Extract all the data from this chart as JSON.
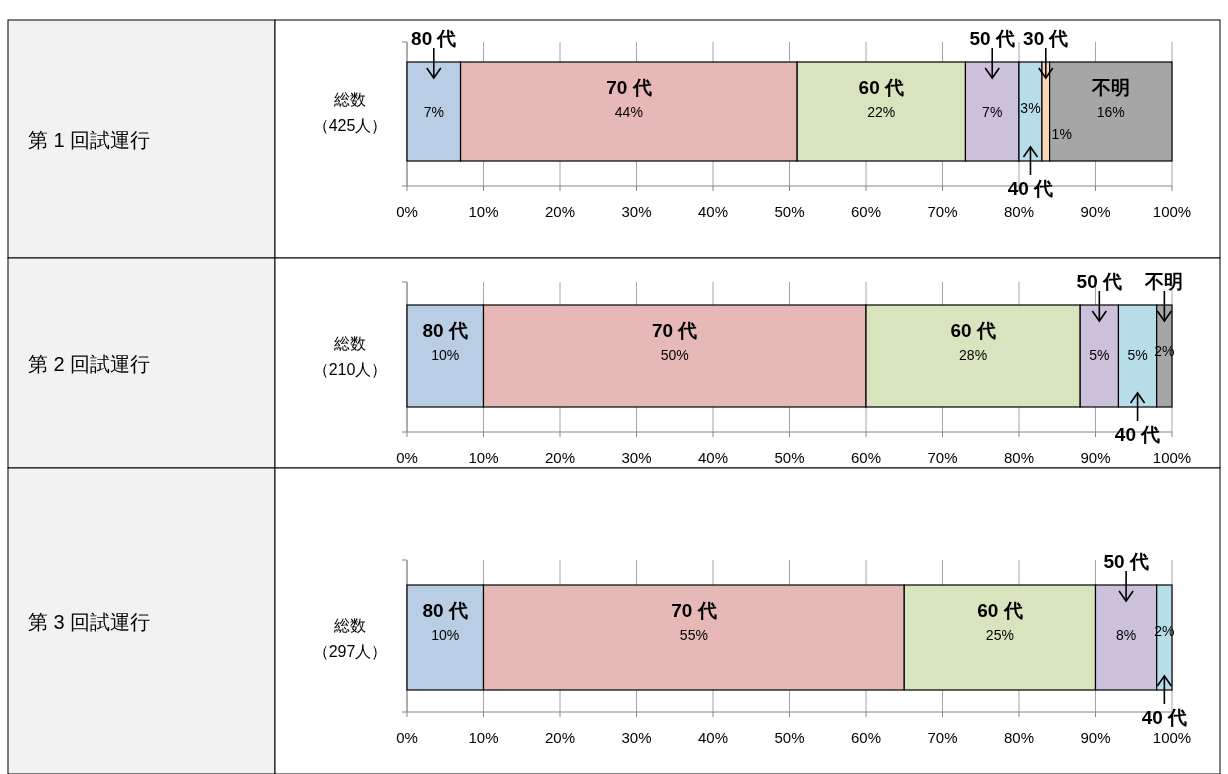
{
  "chart_data": [
    {
      "type": "bar",
      "ylabel": "第 1 回試運行",
      "orientation": "horizontal",
      "stacked": true,
      "categories": [
        "総数（425人）"
      ],
      "xlim": [
        0,
        100
      ],
      "xticks": [
        {
          "value": 0,
          "label": "0%"
        },
        {
          "value": 10,
          "label": "10%"
        },
        {
          "value": 20,
          "label": "20%"
        },
        {
          "value": 30,
          "label": "30%"
        },
        {
          "value": 40,
          "label": "40%"
        },
        {
          "value": 50,
          "label": "50%"
        },
        {
          "value": 60,
          "label": "60%"
        },
        {
          "value": 70,
          "label": "70%"
        },
        {
          "value": 80,
          "label": "80%"
        },
        {
          "value": 90,
          "label": "90%"
        },
        {
          "value": 100,
          "label": "100%"
        }
      ],
      "grid": "x",
      "series": [
        {
          "name": "80 代",
          "color": "#b9cde5",
          "values": [
            7
          ],
          "value_labels": [
            "7%"
          ]
        },
        {
          "name": "70 代",
          "color": "#e6b9b8",
          "values": [
            44
          ],
          "value_labels": [
            "44%"
          ]
        },
        {
          "name": "60 代",
          "color": "#d7e4bd",
          "values": [
            22
          ],
          "value_labels": [
            "22%"
          ]
        },
        {
          "name": "50 代",
          "color": "#ccc1da",
          "values": [
            7
          ],
          "value_labels": [
            "7%"
          ]
        },
        {
          "name": "40 代",
          "color": "#b7dee8",
          "values": [
            3
          ],
          "value_labels": [
            "3%"
          ]
        },
        {
          "name": "30 代",
          "color": "#fcd5b5",
          "values": [
            1
          ],
          "value_labels": [
            "1%"
          ]
        },
        {
          "name": "不明",
          "color": "#a6a6a6",
          "values": [
            16
          ],
          "value_labels": [
            "16%"
          ]
        }
      ]
    },
    {
      "type": "bar",
      "ylabel": "第 2 回試運行",
      "orientation": "horizontal",
      "stacked": true,
      "categories": [
        "総数（210人）"
      ],
      "xlim": [
        0,
        100
      ],
      "xticks": [
        {
          "value": 0,
          "label": "0%"
        },
        {
          "value": 10,
          "label": "10%"
        },
        {
          "value": 20,
          "label": "20%"
        },
        {
          "value": 30,
          "label": "30%"
        },
        {
          "value": 40,
          "label": "40%"
        },
        {
          "value": 50,
          "label": "50%"
        },
        {
          "value": 60,
          "label": "60%"
        },
        {
          "value": 70,
          "label": "70%"
        },
        {
          "value": 80,
          "label": "80%"
        },
        {
          "value": 90,
          "label": "90%"
        },
        {
          "value": 100,
          "label": "100%"
        }
      ],
      "grid": "x",
      "series": [
        {
          "name": "80 代",
          "color": "#b9cde5",
          "values": [
            10
          ],
          "value_labels": [
            "10%"
          ]
        },
        {
          "name": "70 代",
          "color": "#e6b9b8",
          "values": [
            50
          ],
          "value_labels": [
            "50%"
          ]
        },
        {
          "name": "60 代",
          "color": "#d7e4bd",
          "values": [
            28
          ],
          "value_labels": [
            "28%"
          ]
        },
        {
          "name": "50 代",
          "color": "#ccc1da",
          "values": [
            5
          ],
          "value_labels": [
            "5%"
          ]
        },
        {
          "name": "40 代",
          "color": "#b7dee8",
          "values": [
            5
          ],
          "value_labels": [
            "5%"
          ]
        },
        {
          "name": "不明",
          "color": "#a6a6a6",
          "values": [
            2
          ],
          "value_labels": [
            "2%"
          ]
        }
      ]
    },
    {
      "type": "bar",
      "ylabel": "第 3 回試運行",
      "orientation": "horizontal",
      "stacked": true,
      "categories": [
        "総数（297人）"
      ],
      "xlim": [
        0,
        100
      ],
      "xticks": [
        {
          "value": 0,
          "label": "0%"
        },
        {
          "value": 10,
          "label": "10%"
        },
        {
          "value": 20,
          "label": "20%"
        },
        {
          "value": 30,
          "label": "30%"
        },
        {
          "value": 40,
          "label": "40%"
        },
        {
          "value": 50,
          "label": "50%"
        },
        {
          "value": 60,
          "label": "60%"
        },
        {
          "value": 70,
          "label": "70%"
        },
        {
          "value": 80,
          "label": "80%"
        },
        {
          "value": 90,
          "label": "90%"
        },
        {
          "value": 100,
          "label": "100%"
        }
      ],
      "grid": "x",
      "series": [
        {
          "name": "80 代",
          "color": "#b9cde5",
          "values": [
            10
          ],
          "value_labels": [
            "10%"
          ]
        },
        {
          "name": "70 代",
          "color": "#e6b9b8",
          "values": [
            55
          ],
          "value_labels": [
            "55%"
          ]
        },
        {
          "name": "60 代",
          "color": "#d7e4bd",
          "values": [
            25
          ],
          "value_labels": [
            "25%"
          ]
        },
        {
          "name": "50 代",
          "color": "#ccc1da",
          "values": [
            8
          ],
          "value_labels": [
            "8%"
          ]
        },
        {
          "name": "40 代",
          "color": "#b7dee8",
          "values": [
            2
          ],
          "value_labels": [
            "2%"
          ]
        }
      ]
    }
  ]
}
